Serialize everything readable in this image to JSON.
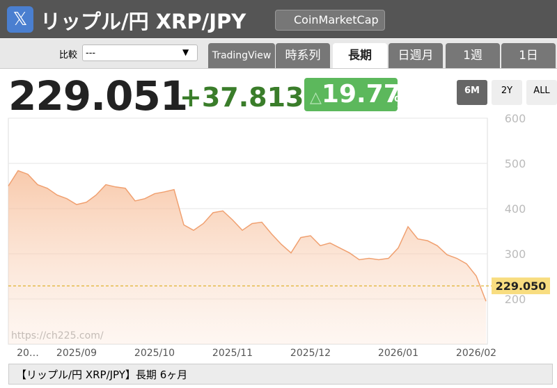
{
  "header": {
    "title": "リップル/円 XRP/JPY",
    "source_button": "CoinMarketCap"
  },
  "toolbar": {
    "compare_label": "比較",
    "compare_value": "---",
    "tabs": [
      "TradingView",
      "時系列",
      "長期",
      "日週月",
      "1週",
      "1日"
    ],
    "active_tab": 2
  },
  "quote": {
    "price": "229.051",
    "change": "+37.813",
    "change_pct": "19.77",
    "pct_sign": "%"
  },
  "ranges": {
    "buttons": [
      "6M",
      "2Y",
      "ALL"
    ],
    "active": 0
  },
  "chart_data": {
    "type": "area",
    "color": "#f0a070",
    "categories": [
      null,
      null,
      "20…",
      null,
      null,
      null,
      null,
      "2025/09",
      null,
      null,
      null,
      null,
      null,
      null,
      null,
      "2025/10",
      null,
      null,
      null,
      null,
      null,
      null,
      null,
      "2025/11",
      null,
      null,
      null,
      null,
      null,
      null,
      null,
      "2025/12",
      null,
      null,
      null,
      null,
      null,
      null,
      null,
      null,
      "2026/01",
      null,
      null,
      null,
      null,
      null,
      null,
      null,
      "2026/02",
      null
    ],
    "values": [
      450,
      484,
      476,
      453,
      445,
      430,
      422,
      409,
      414,
      430,
      453,
      448,
      445,
      417,
      422,
      433,
      437,
      442,
      364,
      352,
      367,
      391,
      395,
      375,
      352,
      367,
      370,
      344,
      321,
      302,
      336,
      340,
      318,
      324,
      313,
      302,
      287,
      290,
      287,
      290,
      313,
      360,
      333,
      329,
      318,
      298,
      290,
      278,
      251,
      195
    ],
    "ylim": [
      100,
      600
    ],
    "yticks": [
      200,
      300,
      400,
      500,
      600
    ],
    "grid": true,
    "reference_line": {
      "value": 229.05,
      "label": "229.050"
    },
    "watermark": "https://ch225.com/"
  },
  "caption": "【リップル/円 XRP/JPY】長期 6ヶ月"
}
